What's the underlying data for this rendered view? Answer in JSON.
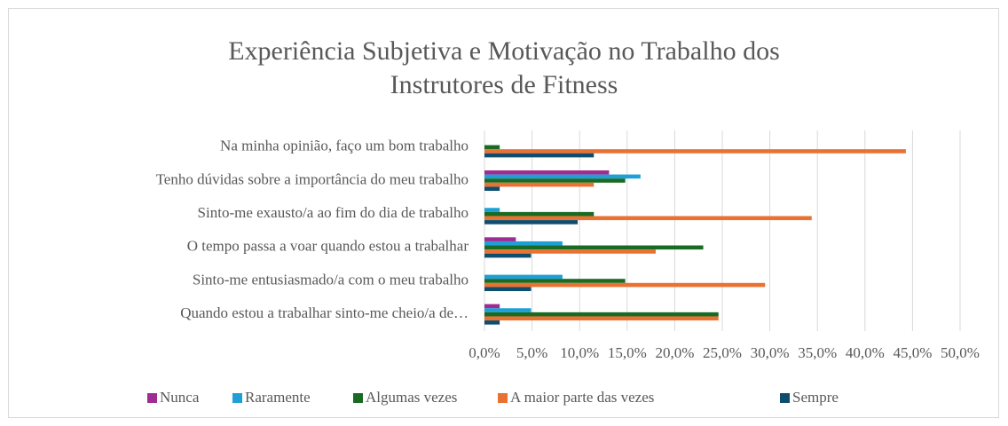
{
  "chart_data": {
    "type": "bar",
    "orientation": "horizontal",
    "title": [
      "Experiência Subjetiva e Motivação no Trabalho dos",
      "Instrutores de Fitness"
    ],
    "categories": [
      "Na minha opinião, faço um bom trabalho",
      "Tenho dúvidas sobre a importância do meu trabalho",
      "Sinto-me exausto/a ao fim do dia de trabalho",
      "O tempo passa a voar quando estou a trabalhar",
      "Sinto-me entusiasmado/a com o meu trabalho",
      "Quando estou a trabalhar sinto-me cheio/a de…"
    ],
    "series": [
      {
        "name": "Nunca",
        "color": "#a02b93",
        "values": [
          0,
          13.1,
          0,
          3.3,
          0,
          1.6
        ]
      },
      {
        "name": "Raramente",
        "color": "#1ea0d6",
        "values": [
          0,
          16.4,
          1.6,
          8.2,
          8.2,
          4.9
        ]
      },
      {
        "name": "Algumas vezes",
        "color": "#196b24",
        "values": [
          1.6,
          14.8,
          11.5,
          23.0,
          14.8,
          24.6
        ]
      },
      {
        "name": "A maior parte das vezes",
        "color": "#e97132",
        "values": [
          44.3,
          11.5,
          34.4,
          18.0,
          29.5,
          24.6
        ]
      },
      {
        "name": "Sempre",
        "color": "#0f4d6e",
        "values": [
          11.5,
          1.6,
          9.8,
          4.9,
          4.9,
          1.6
        ]
      }
    ],
    "xlim": [
      0,
      50
    ],
    "xticks": [
      {
        "value": 0,
        "label": "0,0%"
      },
      {
        "value": 5,
        "label": "5,0%"
      },
      {
        "value": 10,
        "label": "10,0%"
      },
      {
        "value": 15,
        "label": "15,0%"
      },
      {
        "value": 20,
        "label": "20,0%"
      },
      {
        "value": 25,
        "label": "25,0%"
      },
      {
        "value": 30,
        "label": "30,0%"
      },
      {
        "value": 35,
        "label": "35,0%"
      },
      {
        "value": 40,
        "label": "40,0%"
      },
      {
        "value": 45,
        "label": "45,0%"
      },
      {
        "value": 50,
        "label": "50,0%"
      }
    ],
    "grid": true,
    "legend": "bottom"
  }
}
